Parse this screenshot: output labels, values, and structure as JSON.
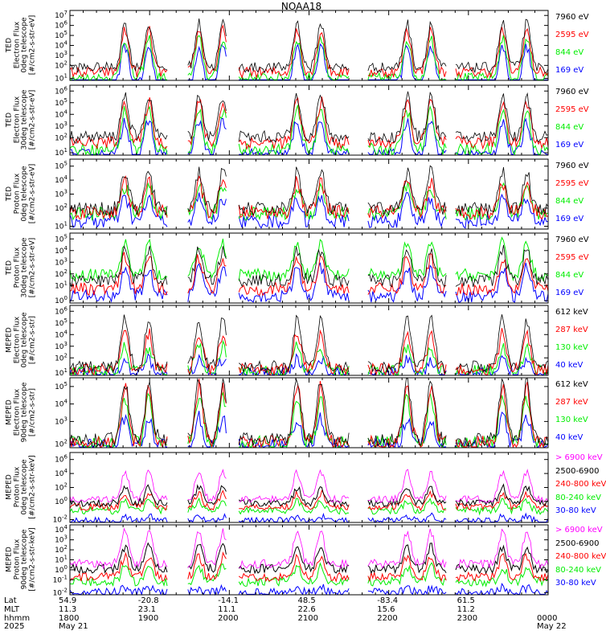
{
  "title": "NOAA18",
  "colors": {
    "blue": "#0000ff",
    "red": "#ff0000",
    "green": "#00ee00",
    "black": "#000000",
    "magenta": "#ff00ff"
  },
  "chart_data": [
    {
      "type": "line",
      "panel": "ted-electron-0deg",
      "ylabel": [
        "TED",
        "Electron Flux",
        "0deg telescope",
        "[#/cm2-s-str-eV]"
      ],
      "yticks": [
        "10^1",
        "10^2",
        "10^3",
        "10^4",
        "10^5",
        "10^6",
        "10^7"
      ],
      "ylim": [
        1,
        7
      ],
      "series": [
        {
          "name": "7960 eV",
          "color": "#000000"
        },
        {
          "name": "2595 eV",
          "color": "#ff0000"
        },
        {
          "name": "844 eV",
          "color": "#00ee00"
        },
        {
          "name": "169 eV",
          "color": "#0000ff"
        }
      ],
      "levels": {
        "base": [
          2.1,
          1.7,
          1.2,
          0.6
        ],
        "peak": [
          5.9,
          5.3,
          4.6,
          3.9
        ]
      }
    },
    {
      "type": "line",
      "panel": "ted-electron-30deg",
      "ylabel": [
        "TED",
        "Electron Flux",
        "30deg telescope",
        "[#/cm2-s-str-eV]"
      ],
      "yticks": [
        "10^1",
        "10^2",
        "10^3",
        "10^4",
        "10^5",
        "10^6"
      ],
      "ylim": [
        1,
        6
      ],
      "series": [
        {
          "name": "7960 eV",
          "color": "#000000"
        },
        {
          "name": "2595 eV",
          "color": "#ff0000"
        },
        {
          "name": "844 eV",
          "color": "#00ee00"
        },
        {
          "name": "169 eV",
          "color": "#0000ff"
        }
      ],
      "levels": {
        "base": [
          2.3,
          1.9,
          1.4,
          1.0
        ],
        "peak": [
          5.3,
          4.8,
          4.2,
          3.5
        ]
      }
    },
    {
      "type": "line",
      "panel": "ted-proton-0deg",
      "ylabel": [
        "TED",
        "Proton Flux",
        "0deg telescope",
        "[#/cm2-s-str-eV]"
      ],
      "yticks": [
        "10^1",
        "10^2",
        "10^3",
        "10^4",
        "10^5"
      ],
      "ylim": [
        0.5,
        5
      ],
      "series": [
        {
          "name": "7960 eV",
          "color": "#000000"
        },
        {
          "name": "2595 eV",
          "color": "#ff0000"
        },
        {
          "name": "844 eV",
          "color": "#00ee00"
        },
        {
          "name": "169 eV",
          "color": "#0000ff"
        }
      ],
      "levels": {
        "base": [
          1.8,
          1.6,
          1.5,
          1.0
        ],
        "peak": [
          4.2,
          3.5,
          3.2,
          2.5
        ]
      }
    },
    {
      "type": "line",
      "panel": "ted-proton-30deg",
      "ylabel": [
        "TED",
        "Proton Flux",
        "30deg telescope",
        "[#/cm2-s-str-eV]"
      ],
      "yticks": [
        "10^0",
        "10^1",
        "10^2",
        "10^3",
        "10^4",
        "10^5"
      ],
      "ylim": [
        0,
        5
      ],
      "series": [
        {
          "name": "7960 eV",
          "color": "#000000"
        },
        {
          "name": "2595 eV",
          "color": "#ff0000"
        },
        {
          "name": "844 eV",
          "color": "#00ee00"
        },
        {
          "name": "169 eV",
          "color": "#0000ff"
        }
      ],
      "levels": {
        "base": [
          1.6,
          1.0,
          2.0,
          0.5
        ],
        "peak": [
          3.8,
          3.3,
          4.3,
          2.5
        ]
      }
    },
    {
      "type": "line",
      "panel": "meped-electron-0deg",
      "ylabel": [
        "MEPED",
        "Electron Flux",
        "0deg telescope",
        "[#/cm2-s-str]"
      ],
      "yticks": [
        "10^1",
        "10^2",
        "10^3",
        "10^4",
        "10^5",
        "10^6"
      ],
      "ylim": [
        1,
        6
      ],
      "series": [
        {
          "name": "612 keV",
          "color": "#000000"
        },
        {
          "name": "287 keV",
          "color": "#ff0000"
        },
        {
          "name": "130 keV",
          "color": "#00ee00"
        },
        {
          "name": "40 keV",
          "color": "#0000ff"
        }
      ],
      "levels": {
        "base": [
          1.6,
          1.4,
          1.3,
          1.1
        ],
        "peak": [
          5.0,
          4.0,
          3.0,
          2.2
        ]
      }
    },
    {
      "type": "line",
      "panel": "meped-electron-90deg",
      "ylabel": [
        "MEPED",
        "Electron Flux",
        "90deg telescope",
        "[#/cm2-s-str]"
      ],
      "yticks": [
        "10^2",
        "10^3",
        "10^4",
        "10^5"
      ],
      "ylim": [
        1.3,
        5.7
      ],
      "series": [
        {
          "name": "612 keV",
          "color": "#000000"
        },
        {
          "name": "287 keV",
          "color": "#ff0000"
        },
        {
          "name": "130 keV",
          "color": "#00ee00"
        },
        {
          "name": "40 keV",
          "color": "#0000ff"
        }
      ],
      "levels": {
        "base": [
          1.8,
          1.6,
          1.6,
          1.4
        ],
        "peak": [
          5.5,
          5.2,
          4.4,
          3.2
        ]
      }
    },
    {
      "type": "line",
      "panel": "meped-proton-0deg",
      "ylabel": [
        "MEPED",
        "Proton Flux",
        "0deg telescope",
        "[#/cm2-s-str-keV]"
      ],
      "yticks": [
        "10^-2",
        "10^0",
        "10^2",
        "10^4",
        "10^6"
      ],
      "ylim": [
        -2.5,
        6.5
      ],
      "series": [
        {
          "name": "> 6900 keV",
          "color": "#ff00ff"
        },
        {
          "name": "2500-6900",
          "color": "#000000"
        },
        {
          "name": "240-800 keV",
          "color": "#ff0000"
        },
        {
          "name": "80-240 keV",
          "color": "#00ee00"
        },
        {
          "name": "30-80 keV",
          "color": "#0000ff"
        }
      ],
      "levels": {
        "base": [
          0.5,
          0.0,
          -0.5,
          -1.0,
          -2.3
        ],
        "peak": [
          4.0,
          2.0,
          1.2,
          0.3,
          -1.7
        ]
      }
    },
    {
      "type": "line",
      "panel": "meped-proton-90deg",
      "ylabel": [
        "MEPED",
        "Proton Flux",
        "90deg telescope",
        "[#/cm2-s-str-keV]"
      ],
      "yticks": [
        "10^-2",
        "10^-1",
        "10^0",
        "10^1",
        "10^2",
        "10^3",
        "10^4"
      ],
      "ylim": [
        -2.3,
        4.7
      ],
      "series": [
        {
          "name": "> 6900 keV",
          "color": "#ff00ff"
        },
        {
          "name": "2500-6900",
          "color": "#000000"
        },
        {
          "name": "240-800 keV",
          "color": "#ff0000"
        },
        {
          "name": "80-240 keV",
          "color": "#00ee00"
        },
        {
          "name": "30-80 keV",
          "color": "#0000ff"
        }
      ],
      "levels": {
        "base": [
          0.8,
          0.3,
          -0.5,
          -1.0,
          -2.1
        ],
        "peak": [
          4.0,
          2.5,
          1.5,
          0.5,
          -1.6
        ]
      }
    }
  ],
  "x_axis": {
    "row_labels": [
      "Lat",
      "MLT",
      "hhmm",
      "2025"
    ],
    "columns": [
      {
        "frac": 0.0,
        "lat": "54.9",
        "mlt": "11.3",
        "hhmm": "1800",
        "date": "May 21"
      },
      {
        "frac": 0.166,
        "lat": "-20.8",
        "mlt": "23.1",
        "hhmm": "1900",
        "date": ""
      },
      {
        "frac": 0.333,
        "lat": "-14.1",
        "mlt": "11.1",
        "hhmm": "2000",
        "date": ""
      },
      {
        "frac": 0.5,
        "lat": "48.5",
        "mlt": "22.6",
        "hhmm": "2100",
        "date": ""
      },
      {
        "frac": 0.666,
        "lat": "-83.4",
        "mlt": "15.6",
        "hhmm": "2200",
        "date": ""
      },
      {
        "frac": 0.833,
        "lat": "61.5",
        "mlt": "11.2",
        "hhmm": "2300",
        "date": ""
      },
      {
        "frac": 1.0,
        "lat": "",
        "mlt": "",
        "hhmm": "0000",
        "date": "May 22"
      }
    ],
    "pass_centers": [
      0.14,
      0.295,
      0.5,
      0.73,
      0.93
    ],
    "gaps": [
      [
        0.205,
        0.245
      ],
      [
        0.33,
        0.35
      ],
      [
        0.585,
        0.62
      ],
      [
        0.79,
        0.805
      ]
    ]
  }
}
